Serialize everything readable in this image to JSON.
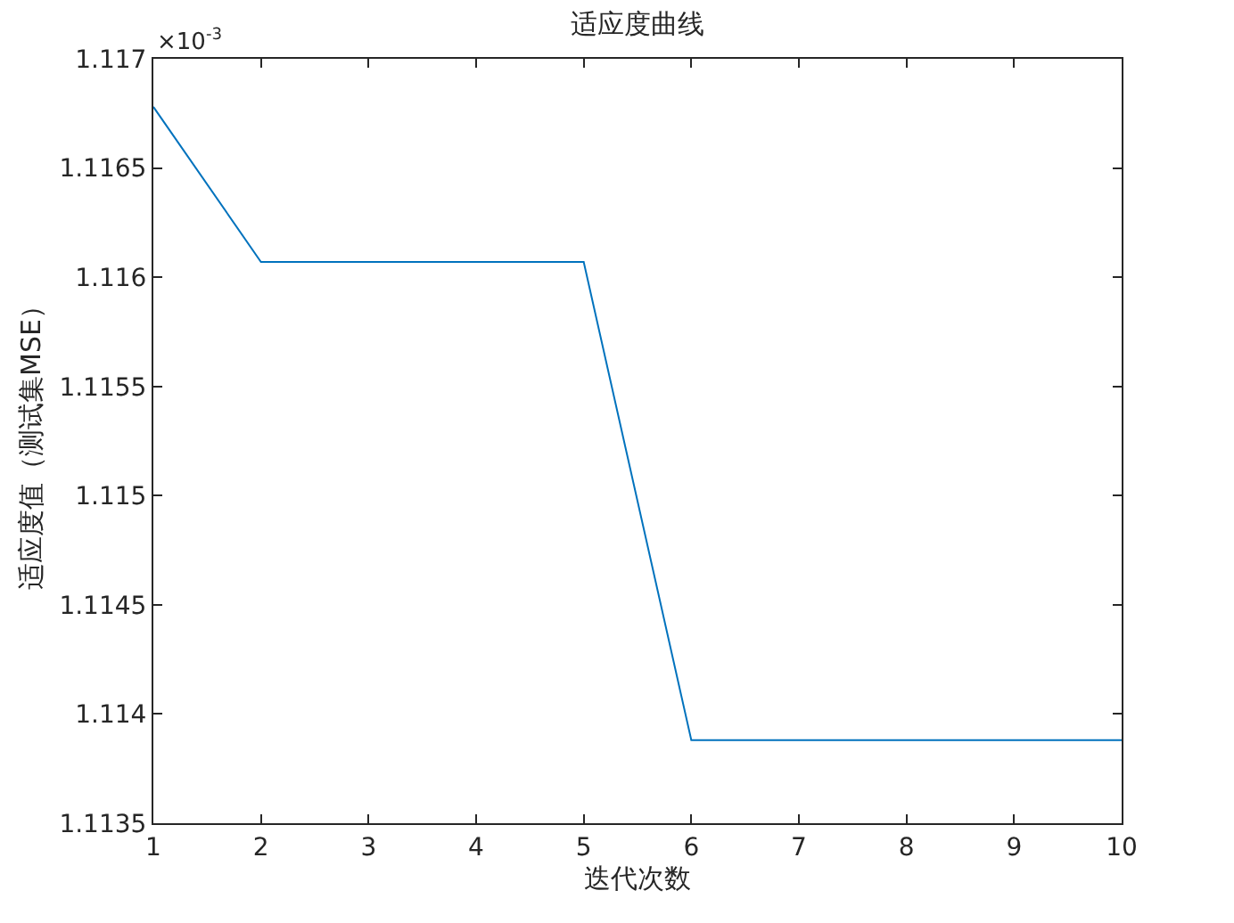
{
  "chart_data": {
    "type": "line",
    "title": "适应度曲线",
    "xlabel": "迭代次数",
    "ylabel": "适应度值（测试集MSE）",
    "annotations": [
      "×10$^{-3}$"
    ],
    "x": [
      1,
      2,
      3,
      4,
      5,
      6,
      7,
      8,
      9,
      10
    ],
    "series": [
      {
        "color": "#0072bd",
        "values": [
          1.11678,
          1.11607,
          1.11607,
          1.11607,
          1.11607,
          1.11388,
          1.11388,
          1.11388,
          1.11388,
          1.11388
        ]
      }
    ],
    "xlim": [
      1,
      10
    ],
    "xticks": [
      1,
      2,
      3,
      4,
      5,
      6,
      7,
      8,
      9,
      10
    ],
    "ylim": [
      1.1135,
      1.117
    ],
    "yticks": [
      1.1135,
      1.114,
      1.1145,
      1.115,
      1.1155,
      1.116,
      1.1165,
      1.117
    ],
    "grid": false,
    "marker": "none",
    "line_style": "solid"
  }
}
